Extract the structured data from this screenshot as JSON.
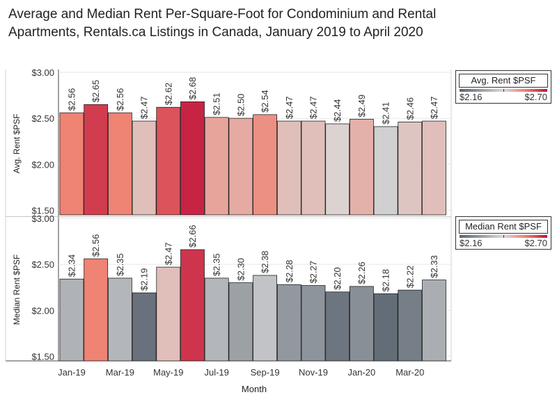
{
  "title": "Average and Median Rent Per-Square-Foot for Condominium and Rental Apartments, Rentals.ca Listings in Canada, January 2019 to April 2020",
  "chart_data": {
    "type": "bar",
    "categories": [
      "Jan-19",
      "Feb-19",
      "Mar-19",
      "Apr-19",
      "May-19",
      "Jun-19",
      "Jul-19",
      "Aug-19",
      "Sep-19",
      "Oct-19",
      "Nov-19",
      "Dec-19",
      "Jan-20",
      "Feb-20",
      "Mar-20",
      "Apr-20"
    ],
    "x_tick_labels": [
      "Jan-19",
      "Mar-19",
      "May-19",
      "Jul-19",
      "Sep-19",
      "Nov-19",
      "Jan-20",
      "Mar-20"
    ],
    "xlabel": "Month",
    "series": [
      {
        "ylabel": "Avg. Rent $PSF",
        "values": [
          2.56,
          2.65,
          2.56,
          2.47,
          2.62,
          2.68,
          2.51,
          2.5,
          2.54,
          2.47,
          2.47,
          2.44,
          2.49,
          2.41,
          2.46,
          2.47
        ],
        "data_labels": [
          "$2.56",
          "$2.65",
          "$2.56",
          "$2.47",
          "$2.62",
          "$2.68",
          "$2.51",
          "$2.50",
          "$2.54",
          "$2.47",
          "$2.47",
          "$2.44",
          "$2.49",
          "$2.41",
          "$2.46",
          "$2.47"
        ],
        "ylim": [
          1.45,
          3.0
        ],
        "y_ticks": [
          "$1.50",
          "$2.00",
          "$2.50",
          "$3.00"
        ],
        "legend_title": "Avg. Rent $PSF",
        "color_min_label": "$2.16",
        "color_max_label": "$2.70"
      },
      {
        "ylabel": "Median Rent $PSF",
        "values": [
          2.34,
          2.56,
          2.35,
          2.19,
          2.47,
          2.66,
          2.35,
          2.3,
          2.38,
          2.28,
          2.27,
          2.2,
          2.26,
          2.18,
          2.22,
          2.33
        ],
        "data_labels": [
          "$2.34",
          "$2.56",
          "$2.35",
          "$2.19",
          "$2.47",
          "$2.66",
          "$2.35",
          "$2.30",
          "$2.38",
          "$2.28",
          "$2.27",
          "$2.20",
          "$2.26",
          "$2.18",
          "$2.22",
          "$2.33"
        ],
        "ylim": [
          1.45,
          3.0
        ],
        "y_ticks": [
          "$1.50",
          "$2.00",
          "$2.50",
          "$3.00"
        ],
        "legend_title": "Median Rent $PSF",
        "color_min_label": "$2.16",
        "color_max_label": "$2.70"
      }
    ],
    "color_scale": {
      "min": 2.16,
      "max": 2.7,
      "colors": [
        "#5a6470",
        "#d9d9d9",
        "#f08070",
        "#c0143c"
      ]
    },
    "grid": true
  }
}
